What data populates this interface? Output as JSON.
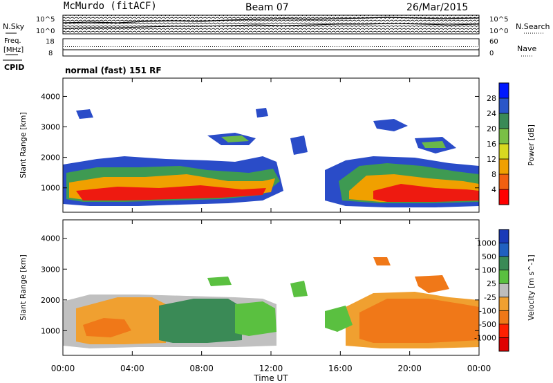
{
  "header": {
    "station": "McMurdo (fitACF)",
    "beam": "Beam 07",
    "date": "26/Mar/2015"
  },
  "top_panels": {
    "nsky_label": "N.Sky",
    "nsearch_label": "N.Search",
    "freq_label_1": "Freq.",
    "freq_label_2": "[MHz]",
    "nave_label": "Nave",
    "cpid_label": "CPID",
    "cpid_value": "normal (fast) 151 RF",
    "noise_left_top": "10^5",
    "noise_left_bottom": "10^0",
    "noise_right_top": "10^5",
    "noise_right_bottom": "10^0",
    "freq_ticks": [
      "18",
      "8"
    ],
    "nave_ticks": [
      "60",
      "0"
    ]
  },
  "chart_data": [
    {
      "type": "heatmap",
      "name": "power",
      "xlabel": "",
      "ylabel": "Slant Range [km]",
      "xlim": [
        0,
        24
      ],
      "ylim": [
        200,
        4600
      ],
      "yticks": [
        "1000",
        "2000",
        "3000",
        "4000"
      ],
      "colorbar_label": "Power [dB]",
      "colorbar_ticks": [
        "4",
        "8",
        "12",
        "16",
        "20",
        "24",
        "28"
      ],
      "colorbar_colors": [
        "#0018ff",
        "#2a56c8",
        "#3a8a56",
        "#7abf46",
        "#d8d820",
        "#f0a000",
        "#f26010",
        "#ff0000"
      ]
    },
    {
      "type": "heatmap",
      "name": "velocity",
      "xlabel": "Time UT",
      "ylabel": "Slant Range [km]",
      "xlim": [
        0,
        24
      ],
      "ylim": [
        200,
        4600
      ],
      "xticks": [
        "00:00",
        "04:00",
        "08:00",
        "12:00",
        "16:00",
        "20:00",
        "00:00"
      ],
      "yticks": [
        "1000",
        "2000",
        "3000",
        "4000"
      ],
      "colorbar_label": "Velocity [m s^-1]",
      "colorbar_ticks": [
        "1000",
        "500",
        "100",
        "25",
        "-25",
        "-100",
        "-500",
        "-1000"
      ],
      "colorbar_colors": [
        "#1a3ab8",
        "#2060c0",
        "#3a8a56",
        "#5ac040",
        "#bdbdbd",
        "#f0a030",
        "#f07818",
        "#ff2000",
        "#e00000"
      ]
    }
  ]
}
